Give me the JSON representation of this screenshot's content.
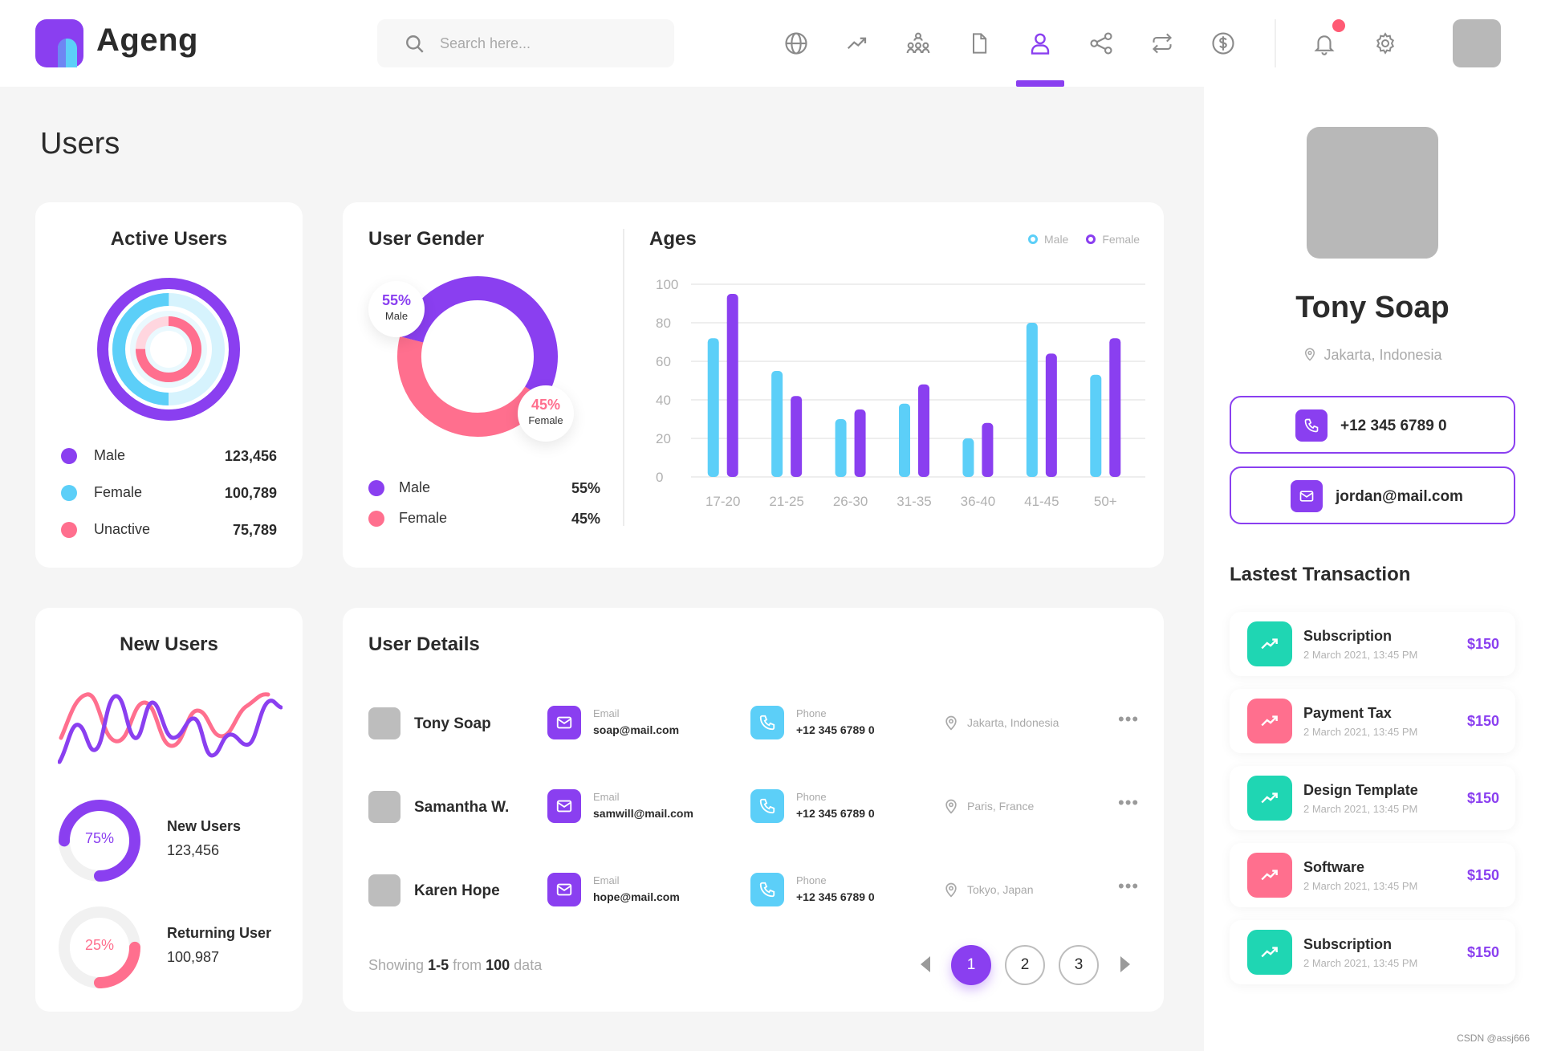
{
  "app": {
    "name": "Ageng"
  },
  "search": {
    "placeholder": "Search here..."
  },
  "nav": {
    "icons": [
      "globe-icon",
      "trending-icon",
      "network-icon",
      "document-icon",
      "user-icon",
      "share-icon",
      "repeat-icon",
      "dollar-icon"
    ],
    "active": "user-icon",
    "accent": "#8a3ff0",
    "notification_color": "#ff5a74"
  },
  "page": {
    "title": "Users"
  },
  "active_users": {
    "title": "Active Users",
    "items": [
      {
        "label": "Male",
        "value": "123,456",
        "color": "#8a3ff0"
      },
      {
        "label": "Female",
        "value": "100,789",
        "color": "#5ccff8"
      },
      {
        "label": "Unactive",
        "value": "75,789",
        "color": "#ff6f8e"
      }
    ]
  },
  "user_gender": {
    "title": "User Gender",
    "male_badge": {
      "pct": "55%",
      "label": "Male"
    },
    "female_badge": {
      "pct": "45%",
      "label": "Female"
    },
    "items": [
      {
        "label": "Male",
        "value": "55%",
        "color": "#8a3ff0"
      },
      {
        "label": "Female",
        "value": "45%",
        "color": "#ff6f8e"
      }
    ]
  },
  "ages": {
    "title": "Ages",
    "legend": {
      "male": "Male",
      "female": "Female"
    },
    "y_ticks": [
      "100",
      "80",
      "60",
      "40",
      "20",
      "0"
    ]
  },
  "chart_data": [
    {
      "type": "pie",
      "labels": [
        "Male",
        "Female"
      ],
      "values": [
        55,
        45
      ],
      "colors": [
        "#8a3ff0",
        "#ff6f8e"
      ]
    },
    {
      "type": "bar",
      "categories": [
        "17-20",
        "21-25",
        "26-30",
        "31-35",
        "36-40",
        "41-45",
        "50+"
      ],
      "series": [
        {
          "name": "Male",
          "color": "#5ccff8",
          "values": [
            72,
            55,
            30,
            38,
            20,
            80,
            53
          ]
        },
        {
          "name": "Female",
          "color": "#8a3ff0",
          "values": [
            95,
            42,
            35,
            48,
            28,
            64,
            72
          ]
        }
      ],
      "ylim": [
        0,
        100
      ],
      "yticks": [
        0,
        20,
        40,
        60,
        80,
        100
      ],
      "grid": true,
      "legend": "top-right"
    }
  ],
  "new_users": {
    "title": "New Users",
    "stats": [
      {
        "pct": "75%",
        "label": "New Users",
        "value": "123,456",
        "color": "#8a3ff0",
        "fraction": 0.75
      },
      {
        "pct": "25%",
        "label": "Returning User",
        "value": "100,987",
        "color": "#ff6f8e",
        "fraction": 0.25
      }
    ]
  },
  "user_details": {
    "title": "User Details",
    "email_label": "Email",
    "phone_label": "Phone",
    "rows": [
      {
        "name": "Tony Soap",
        "email": "soap@mail.com",
        "phone": "+12 345 6789 0",
        "location": "Jakarta, Indonesia"
      },
      {
        "name": "Samantha W.",
        "email": "samwill@mail.com",
        "phone": "+12 345 6789 0",
        "location": "Paris, France"
      },
      {
        "name": "Karen Hope",
        "email": "hope@mail.com",
        "phone": "+12 345 6789 0",
        "location": "Tokyo, Japan"
      }
    ],
    "footer": {
      "prefix": "Showing",
      "range": "1-5",
      "from": "from",
      "total": "100",
      "suffix": "data"
    },
    "pages": [
      "1",
      "2",
      "3"
    ],
    "current_page": "1"
  },
  "profile": {
    "name": "Tony Soap",
    "location": "Jakarta, Indonesia",
    "phone": "+12 345 6789 0",
    "email": "jordan@mail.com"
  },
  "transactions": {
    "title": "Lastest Transaction",
    "items": [
      {
        "name": "Subscription",
        "date": "2 March 2021, 13:45 PM",
        "amount": "$150",
        "color": "#1fd6b3"
      },
      {
        "name": "Payment Tax",
        "date": "2 March 2021, 13:45 PM",
        "amount": "$150",
        "color": "#ff6f8e"
      },
      {
        "name": "Design Template",
        "date": "2 March 2021, 13:45 PM",
        "amount": "$150",
        "color": "#1fd6b3"
      },
      {
        "name": "Software",
        "date": "2 March 2021, 13:45 PM",
        "amount": "$150",
        "color": "#ff6f8e"
      },
      {
        "name": "Subscription",
        "date": "2 March 2021, 13:45 PM",
        "amount": "$150",
        "color": "#1fd6b3"
      }
    ]
  },
  "watermark": "CSDN @assj666"
}
